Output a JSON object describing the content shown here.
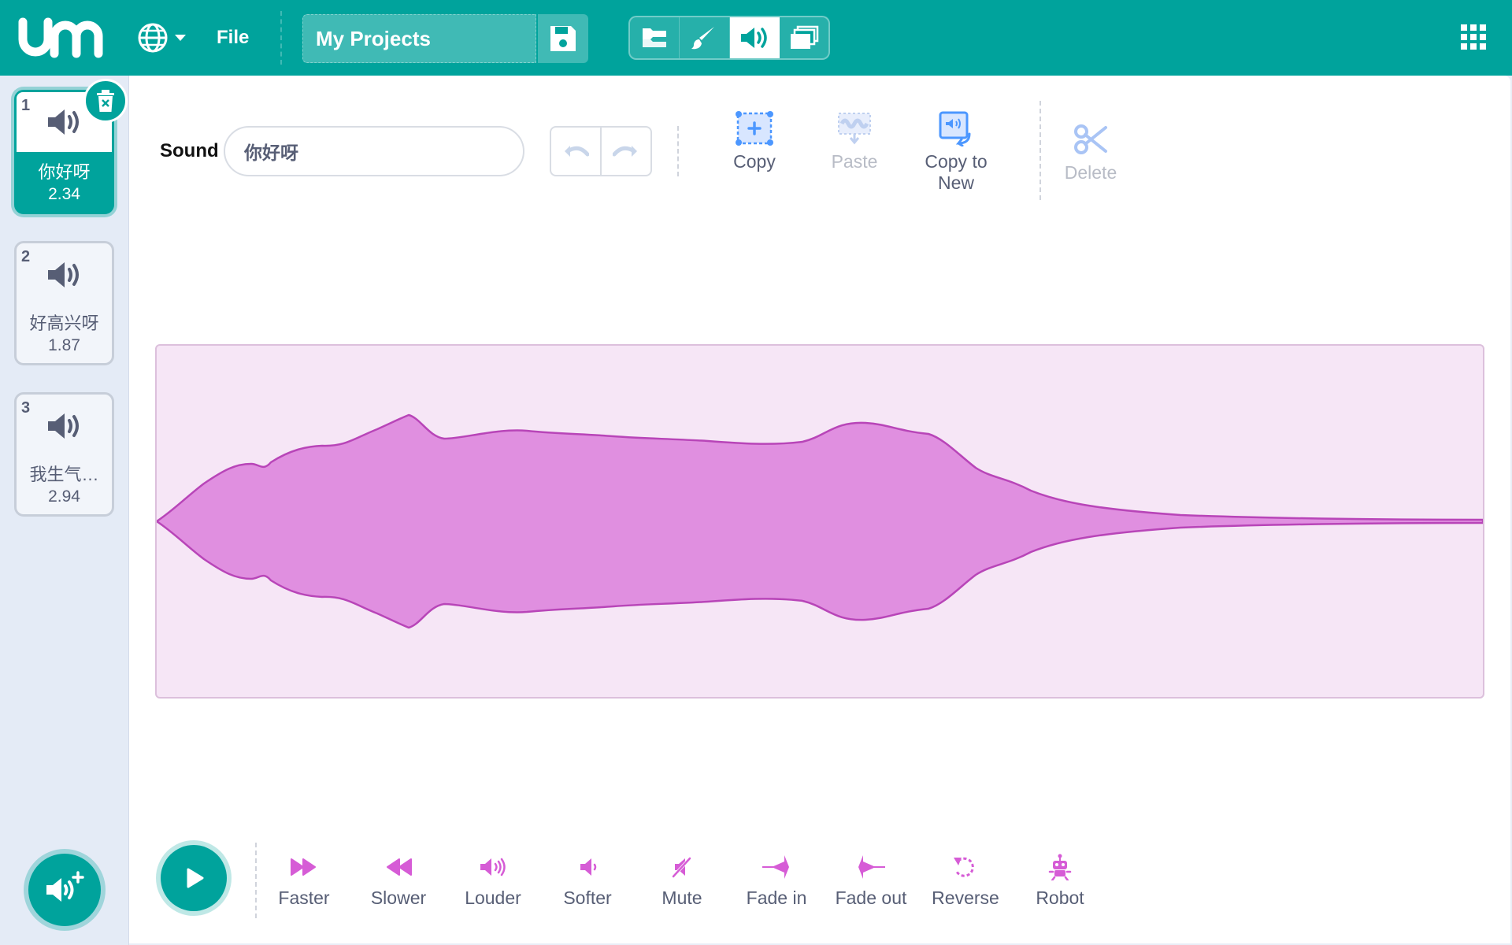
{
  "topbar": {
    "file_label": "File",
    "project_title": "My Projects",
    "tabs": [
      "code-tab",
      "costumes-tab",
      "sounds-tab",
      "backdrops-tab"
    ],
    "active_tab": "sounds-tab",
    "bg_color": "#00a39c"
  },
  "sounds": [
    {
      "index": "1",
      "name": "你好呀",
      "duration": "2.34",
      "selected": true
    },
    {
      "index": "2",
      "name": "好高兴呀",
      "duration": "1.87",
      "selected": false
    },
    {
      "index": "3",
      "name": "我生气…",
      "duration": "2.94",
      "selected": false
    }
  ],
  "editor": {
    "sound_label": "Sound",
    "sound_name_value": "你好呀",
    "tools": {
      "copy": "Copy",
      "paste": "Paste",
      "copy_to_new": "Copy to New",
      "delete": "Delete"
    }
  },
  "effects": {
    "faster": "Faster",
    "slower": "Slower",
    "louder": "Louder",
    "softer": "Softer",
    "mute": "Mute",
    "fade_in": "Fade in",
    "fade_out": "Fade out",
    "reverse": "Reverse",
    "robot": "Robot"
  },
  "colors": {
    "accent": "#00a39c",
    "waveform_fill": "#e08fe0",
    "waveform_stroke": "#b845b8",
    "effect_icon": "#d65cd6",
    "tool_icon": "#4c97ff"
  }
}
